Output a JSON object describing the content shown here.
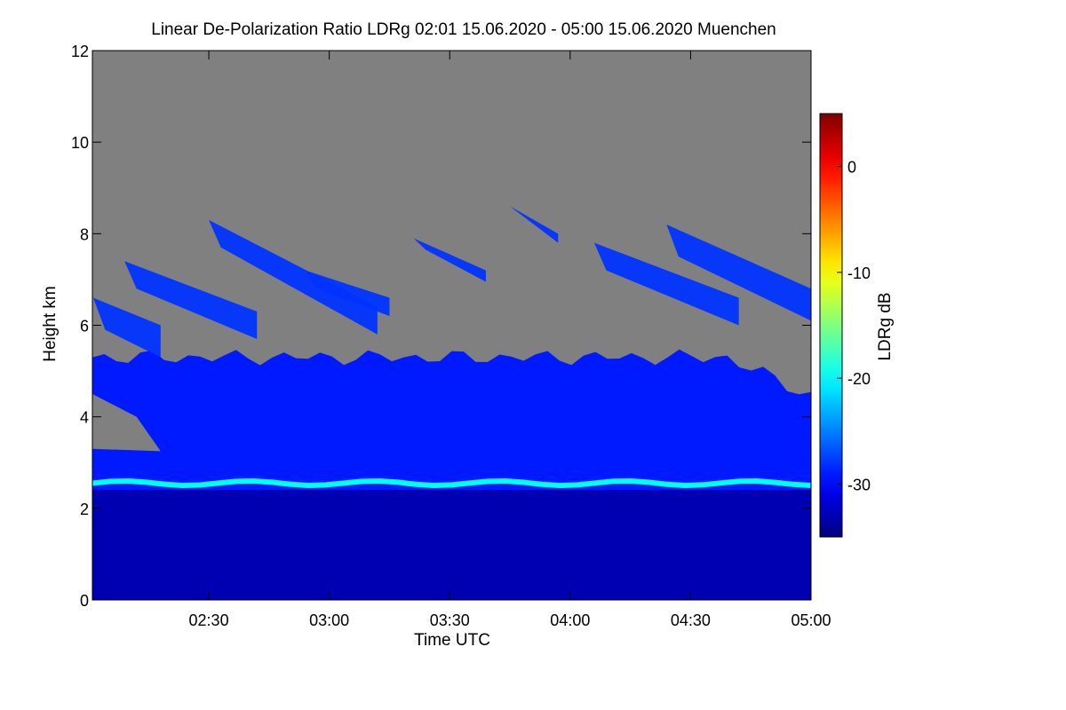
{
  "chart_data": {
    "type": "heatmap",
    "title": "Linear De-Polarization Ratio LDRg   02:01 15.06.2020 - 05:00 15.06.2020 Muenchen",
    "xlabel": "Time UTC",
    "ylabel": "Height km",
    "x_range": [
      2.0167,
      5.0
    ],
    "y_range": [
      0,
      12
    ],
    "x_ticks": [
      {
        "value": 2.5,
        "label": "02:30"
      },
      {
        "value": 3.0,
        "label": "03:00"
      },
      {
        "value": 3.5,
        "label": "03:30"
      },
      {
        "value": 4.0,
        "label": "04:00"
      },
      {
        "value": 4.5,
        "label": "04:30"
      },
      {
        "value": 5.0,
        "label": "05:00"
      }
    ],
    "y_ticks": [
      0,
      2,
      4,
      6,
      8,
      10,
      12
    ],
    "colorbar": {
      "label": "LDRg dB",
      "range": [
        -35,
        5
      ],
      "ticks": [
        0,
        -10,
        -20,
        -30
      ]
    },
    "no_signal_color": "#808080",
    "features": {
      "melting_layer": {
        "height_km": 2.55,
        "ldr_db": -20
      },
      "rain_below_km": 2.4,
      "rain_ldr_db": -33,
      "cloud_top_km": 5.3,
      "cloud_ldr_db": -29,
      "upper_layer_km": [
        6.0,
        8.2
      ],
      "upper_layer_ldr_db": -28
    }
  },
  "colors": {
    "background": "#ffffff",
    "axis": "#000000"
  }
}
